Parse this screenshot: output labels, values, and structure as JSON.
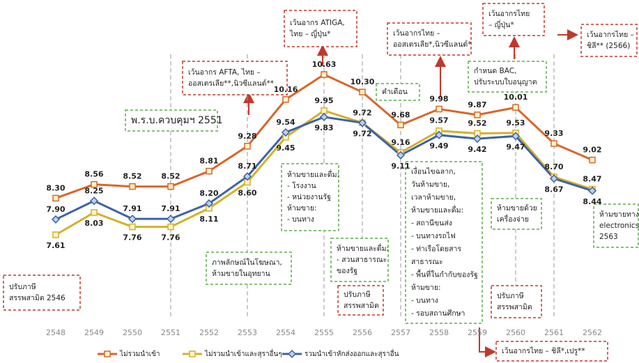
{
  "chart_data": {
    "type": "line",
    "categories": [
      "2548",
      "2549",
      "2550",
      "2551",
      "2552",
      "2553",
      "2554",
      "2555",
      "2556",
      "2557",
      "2558",
      "2559",
      "2560",
      "2561",
      "2562"
    ],
    "series": [
      {
        "name": "ไม่รวมนำเข้า",
        "color": "#d9662a",
        "marker": "square",
        "values": [
          8.3,
          8.56,
          8.52,
          8.52,
          8.81,
          9.28,
          10.16,
          10.63,
          10.3,
          9.68,
          9.98,
          9.87,
          10.01,
          9.33,
          9.02
        ],
        "value_labels": [
          "8.30",
          "8.56",
          "8.52",
          "8.52",
          "8.81",
          "9.28",
          "10.16",
          "10.63",
          "10.30",
          "9.68",
          "9.98",
          "9.87",
          "10.01",
          "9.33",
          "9.02"
        ]
      },
      {
        "name": "ไม่รวมนำเข้าและสุราอื่นๆ",
        "color": "#d4b12a",
        "marker": "square",
        "values": [
          7.61,
          8.03,
          7.76,
          7.76,
          8.11,
          8.6,
          9.45,
          9.95,
          9.72,
          9.16,
          9.57,
          9.52,
          9.53,
          8.7,
          8.47
        ],
        "value_labels": [
          "7.61",
          "8.03",
          "7.76",
          "7.76",
          "8.11",
          "8.60",
          "9.45",
          "9.95",
          "9.72",
          "9.16",
          "9.57",
          "9.52",
          "9.53",
          "8.70",
          "8.47"
        ]
      },
      {
        "name": "รวมนำเข้าหักส่งออกและสุราอื่น",
        "color": "#3d63a8",
        "marker": "diamond",
        "values": [
          7.9,
          8.25,
          7.91,
          7.91,
          8.2,
          8.71,
          9.54,
          9.83,
          9.72,
          9.11,
          9.49,
          9.42,
          9.47,
          8.67,
          8.44
        ],
        "value_labels": [
          "7.90",
          "8.25",
          "7.91",
          "7.91",
          "8.20",
          "8.71",
          "9.54",
          "9.83",
          "9.72",
          "9.11",
          "9.49",
          "9.42",
          "9.47",
          "8.67",
          "8.44"
        ]
      }
    ],
    "legend": "bottom",
    "annotations": [
      {
        "lines": [
          "ปรับภาษี",
          "สรรพสามิต 2546"
        ]
      },
      {
        "lines": [
          "พ.ร.บ.ควบคุมฯ 2551"
        ]
      },
      {
        "lines": [
          "เว้นอากร AFTA, ไทย –",
          "ออสเตรเลีย**,นิวซีแลนด์**"
        ]
      },
      {
        "lines": [
          "เว้นอากร ATIGA,",
          "ไทย – ญี่ปุ่น*"
        ]
      },
      {
        "lines": [
          "คำเตือน"
        ]
      },
      {
        "lines": [
          "เว้นอากรไทย –",
          "ออสเตรเลีย*,นิวซีแลนด์*"
        ]
      },
      {
        "lines": [
          "เว้นอากรไทย",
          "– ญี่ปุ่น*"
        ]
      },
      {
        "lines": [
          "เว้นอากรไทย –",
          "ชิลี** (2566)"
        ]
      },
      {
        "lines": [
          "กำหนด BAC,",
          "ปรับระบบใบอนุญาต"
        ]
      },
      {
        "lines": [
          "ห้ามขายและดื่ม:",
          "- โรงงาน",
          "- หน่วยงานรัฐ",
          "ห้ามขาย:",
          "- บนทาง"
        ]
      },
      {
        "lines": [
          "ภาพลักษณ์ในโฆษณา,",
          "ห้ามขายในอุทยาน"
        ]
      },
      {
        "lines": [
          "ห้ามขายและดื่ม:",
          "- สวนสาธารณะ",
          "ของรัฐ"
        ]
      },
      {
        "lines": [
          "ปรับภาษี",
          "สรรพสามิต"
        ]
      },
      {
        "lines": [
          "เงื่อนไขฉลาก,",
          "วันห้ามขาย,",
          "เวลาห้ามขาย,",
          "ห้ามขายและดื่ม:",
          "- สถานีขนส่ง",
          "- บนทางรถไฟ",
          "- ท่าเรือโดยสาร",
          "สาธารณะ",
          "- พื้นที่ในกำกับของรัฐ",
          "ห้ามขาย:",
          "- บนทาง",
          "- รอบสถานศึกษา"
        ]
      },
      {
        "lines": [
          "ห้ามขายด้วย",
          "เครื่องจ่าย"
        ]
      },
      {
        "lines": [
          "ปรับภาษี",
          "สรรพสามิต"
        ]
      },
      {
        "lines": [
          "ห้ามขายทาง",
          "electronics",
          "2563"
        ]
      },
      {
        "lines": [
          "เว้นอากรไทย – ชิลี*,เปรู**"
        ]
      }
    ]
  }
}
